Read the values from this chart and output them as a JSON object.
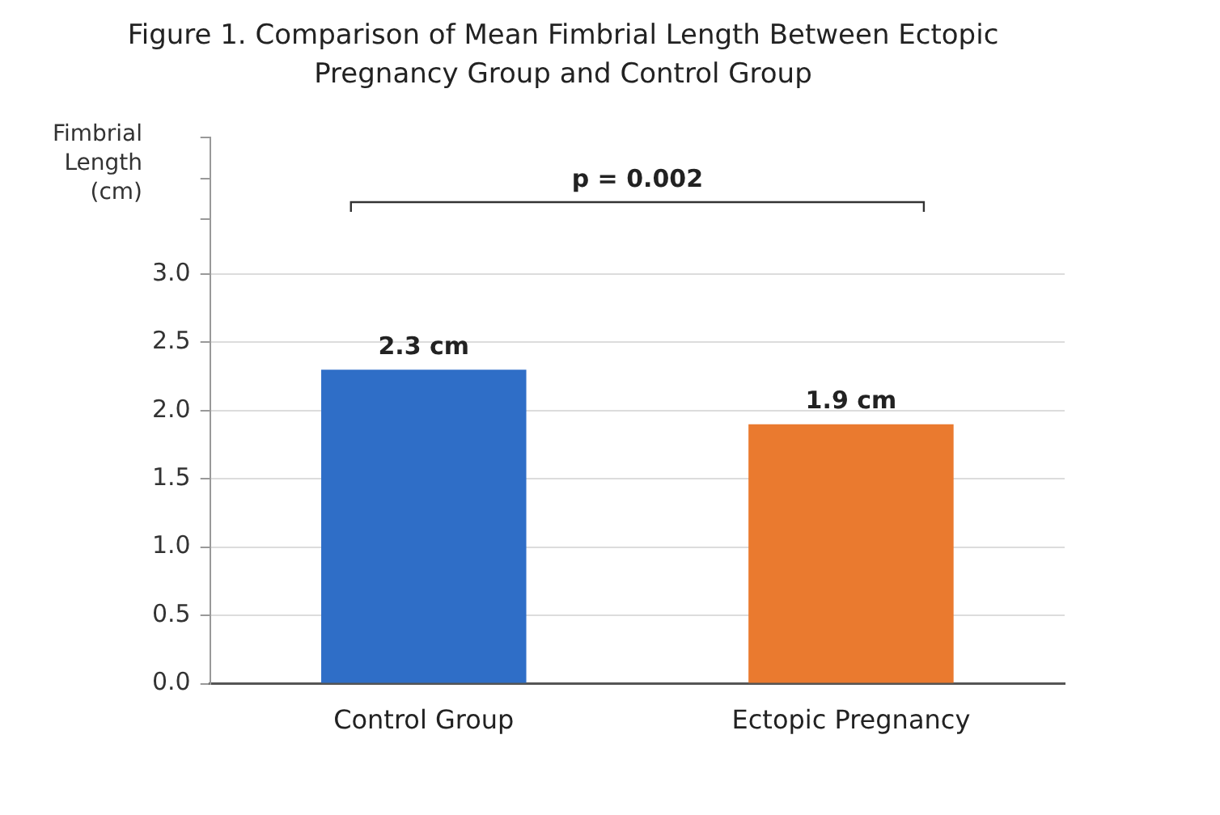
{
  "chart_data": {
    "type": "bar",
    "title": "Figure 1. Comparison of Mean Fimbrial Length Between Ectopic Pregnancy Group and Control Group",
    "ylabel": "Fimbrial Length (cm)",
    "categories": [
      "Control Group",
      "Ectopic Pregnancy"
    ],
    "values": [
      2.3,
      1.9
    ],
    "colors": [
      "#2f6ec7",
      "#ea7a2f"
    ],
    "value_labels": [
      "2.3 cm",
      "1.9 cm"
    ],
    "ylim": [
      0,
      4.0
    ],
    "yticks": [
      {
        "value": 0,
        "label": "0.0"
      },
      {
        "value": 0.5,
        "label": "0.5"
      },
      {
        "value": 1,
        "label": "1.0"
      },
      {
        "value": 1.5,
        "label": "1.5"
      },
      {
        "value": 2,
        "label": "2.0"
      },
      {
        "value": 2.5,
        "label": "2.5"
      },
      {
        "value": 3,
        "label": "3.0"
      },
      {
        "value": 3.4,
        "label": null
      },
      {
        "value": 3.7,
        "label": null
      },
      {
        "value": 4.0,
        "label": null
      }
    ],
    "grid": "y",
    "annotations": [
      "p = 0.002"
    ]
  }
}
